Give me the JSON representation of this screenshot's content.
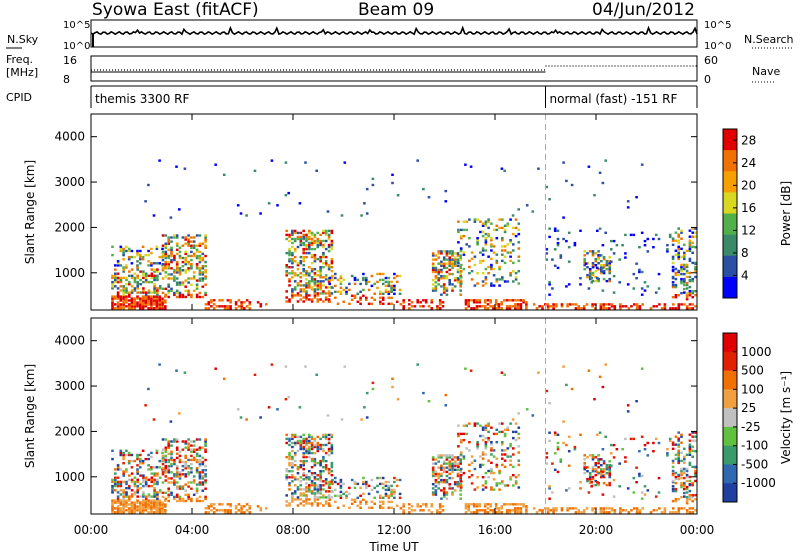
{
  "header": {
    "station": "Syowa East (fitACF)",
    "beam": "Beam 09",
    "date": "04/Jun/2012"
  },
  "top_panels": {
    "nsky_label": "N.Sky",
    "nsky_ticks": [
      "10^5",
      "10^0"
    ],
    "nsearch_label": "N.Search",
    "nsearch_ticks": [
      "10^5",
      "10^0"
    ],
    "freq_label_1": "Freq.",
    "freq_label_2": "[MHz]",
    "freq_ticks": [
      "16",
      "8"
    ],
    "nave_label": "Nave",
    "nave_ticks": [
      "60",
      "0"
    ],
    "cpid_label": "CPID",
    "cpid_segments": [
      {
        "label": "themis 3300 RF",
        "start_hour": 0
      },
      {
        "label": "normal (fast) -151 RF",
        "start_hour": 18
      }
    ]
  },
  "chart_data": [
    {
      "type": "heatmap",
      "parameter": "Power",
      "ylabel": "Slant Range [km]",
      "xlabel": "Time UT",
      "x_ticks": [
        "00:00",
        "04:00",
        "08:00",
        "12:00",
        "16:00",
        "20:00",
        "00:00"
      ],
      "xlim_hours": [
        0,
        24
      ],
      "y_ticks": [
        "1000",
        "2000",
        "3000",
        "4000"
      ],
      "ylim": [
        180,
        4500
      ],
      "colorbar_label": "Power [dB]",
      "colorbar_ticks": [
        "4",
        "8",
        "12",
        "16",
        "20",
        "24",
        "28"
      ],
      "colorbar_range": [
        0,
        30
      ],
      "colorbar_colors": [
        "#0000ff",
        "#2c4fa6",
        "#3a8a6a",
        "#52b04a",
        "#d8d820",
        "#f5a000",
        "#f07000",
        "#e00000"
      ],
      "mode_change_hour": 18
    },
    {
      "type": "heatmap",
      "parameter": "Velocity",
      "ylabel": "Slant Range [km]",
      "xlabel": "Time UT",
      "x_ticks": [
        "00:00",
        "04:00",
        "08:00",
        "12:00",
        "16:00",
        "20:00",
        "00:00"
      ],
      "xlim_hours": [
        0,
        24
      ],
      "y_ticks": [
        "1000",
        "2000",
        "3000",
        "4000"
      ],
      "ylim": [
        180,
        4500
      ],
      "colorbar_label": "Velocity [m s⁻¹]",
      "colorbar_ticks": [
        "1000",
        "500",
        "100",
        "25",
        "-25",
        "-100",
        "-500",
        "-1000"
      ],
      "colorbar_colors": [
        "#2040a0",
        "#2f6ab0",
        "#3a9a6a",
        "#60c040",
        "#c0c0c0",
        "#f0a040",
        "#f07000",
        "#e02000",
        "#e00000"
      ],
      "mode_change_hour": 18
    }
  ]
}
